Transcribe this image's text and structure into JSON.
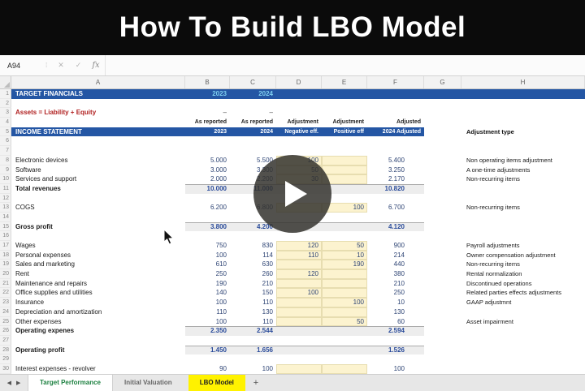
{
  "video": {
    "title": "How To Build LBO Model",
    "play_icon": "play-icon"
  },
  "formula_bar": {
    "name_box": "A94",
    "cancel_icon": "✕",
    "confirm_icon": "✓",
    "fx_label": "fx",
    "input_value": ""
  },
  "colors": {
    "banner_blue": "#2456a4",
    "year_cyan": "#7fd0f0",
    "equation_red": "#b02020",
    "input_yellow": "#fcf3cf",
    "total_gray": "#ededed",
    "active_tab_yellow": "#fff200",
    "tab_green": "#1c8040",
    "number_navy": "#2f4575"
  },
  "sheet": {
    "columns": [
      "A",
      "B",
      "C",
      "D",
      "E",
      "F",
      "G",
      "H"
    ],
    "rows": [
      {
        "n": 1,
        "a": "TARGET FINANCIALS",
        "b": "2023",
        "c": "2024",
        "style": "banner1"
      },
      {
        "n": 2,
        "style": "blank"
      },
      {
        "n": 3,
        "a": "Assets = Liability + Equity",
        "b": "–",
        "c": "–",
        "style": "equation"
      },
      {
        "n": 4,
        "b": "As reported",
        "c": "As reported",
        "d": "Adjustment",
        "e": "Adjustment",
        "f": "Adjusted",
        "style": "subhead"
      },
      {
        "n": 5,
        "a": "INCOME STATEMENT",
        "b": "2023",
        "c": "2024",
        "d": "Negative eff.",
        "e": "Positive eff",
        "f": "2024 Adjusted",
        "h": "Adjustment type",
        "style": "banner5"
      },
      {
        "n": 6,
        "style": "blank"
      },
      {
        "n": 7,
        "style": "blank"
      },
      {
        "n": 8,
        "a": "Electronic devices",
        "b": "5.000",
        "c": "5.500",
        "d": "100",
        "f": "5.400",
        "h": "Non operating items adjustment",
        "style": "item yellow"
      },
      {
        "n": 9,
        "a": "Software",
        "b": "3.000",
        "c": "3.300",
        "d": "50",
        "f": "3.250",
        "h": "A one-time adjustments",
        "style": "item yellow"
      },
      {
        "n": 10,
        "a": "Services and support",
        "b": "2.000",
        "c": "2.200",
        "d": "30",
        "f": "2.170",
        "h": "Non-recurring items",
        "style": "item yellow"
      },
      {
        "n": 11,
        "a": "Total revenues",
        "b": "10.000",
        "c": "11.000",
        "f": "10.820",
        "style": "total"
      },
      {
        "n": 12,
        "style": "blank"
      },
      {
        "n": 13,
        "a": "COGS",
        "b": "6.200",
        "c": "6.800",
        "e": "100",
        "f": "6.700",
        "h": "Non-recurring items",
        "style": "item yellow"
      },
      {
        "n": 14,
        "style": "blank"
      },
      {
        "n": 15,
        "a": "Gross profit",
        "b": "3.800",
        "c": "4.200",
        "f": "4.120",
        "style": "total"
      },
      {
        "n": 16,
        "style": "blank"
      },
      {
        "n": 17,
        "a": "Wages",
        "b": "750",
        "c": "830",
        "d": "120",
        "e": "50",
        "f": "900",
        "h": "Payroll adjustments",
        "style": "item yellow"
      },
      {
        "n": 18,
        "a": "Personal expenses",
        "b": "100",
        "c": "114",
        "d": "110",
        "e": "10",
        "f": "214",
        "h": "Owner compensation adjustment",
        "style": "item yellow"
      },
      {
        "n": 19,
        "a": "Sales and marketing",
        "b": "610",
        "c": "630",
        "e": "190",
        "f": "440",
        "h": "Non-recurring items",
        "style": "item yellow"
      },
      {
        "n": 20,
        "a": "Rent",
        "b": "250",
        "c": "260",
        "d": "120",
        "f": "380",
        "h": "Rental normalization",
        "style": "item yellow"
      },
      {
        "n": 21,
        "a": "Maintenance and repairs",
        "b": "190",
        "c": "210",
        "f": "210",
        "h": "Discontinued operations",
        "style": "item yellow"
      },
      {
        "n": 22,
        "a": "Office supplies and utilities",
        "b": "140",
        "c": "150",
        "d": "100",
        "f": "250",
        "h": "Related parties effects adjustments",
        "style": "item yellow"
      },
      {
        "n": 23,
        "a": "Insurance",
        "b": "100",
        "c": "110",
        "e": "100",
        "f": "10",
        "h": "GAAP adjustmnt",
        "style": "item yellow"
      },
      {
        "n": 24,
        "a": "Depreciation and amortization",
        "b": "110",
        "c": "130",
        "f": "130",
        "style": "item yellow"
      },
      {
        "n": 25,
        "a": "Other expenses",
        "b": "100",
        "c": "110",
        "e": "50",
        "f": "60",
        "h": "Asset impairment",
        "style": "item yellow"
      },
      {
        "n": 26,
        "a": "Operating expenes",
        "b": "2.350",
        "c": "2.544",
        "f": "2.594",
        "style": "total"
      },
      {
        "n": 27,
        "style": "blank"
      },
      {
        "n": 28,
        "a": "Operating profit",
        "b": "1.450",
        "c": "1.656",
        "f": "1.526",
        "style": "total"
      },
      {
        "n": 29,
        "style": "blank"
      },
      {
        "n": 30,
        "a": "Interest expenses - revolver",
        "b": "90",
        "c": "100",
        "f": "100",
        "style": "item yellow"
      }
    ]
  },
  "tabs": {
    "prev_icon": "◀",
    "next_icon": "▶",
    "items": [
      {
        "label": "Target Performance"
      },
      {
        "label": "Initial Valuation"
      },
      {
        "label": "LBO Model"
      }
    ],
    "add_label": "+"
  }
}
